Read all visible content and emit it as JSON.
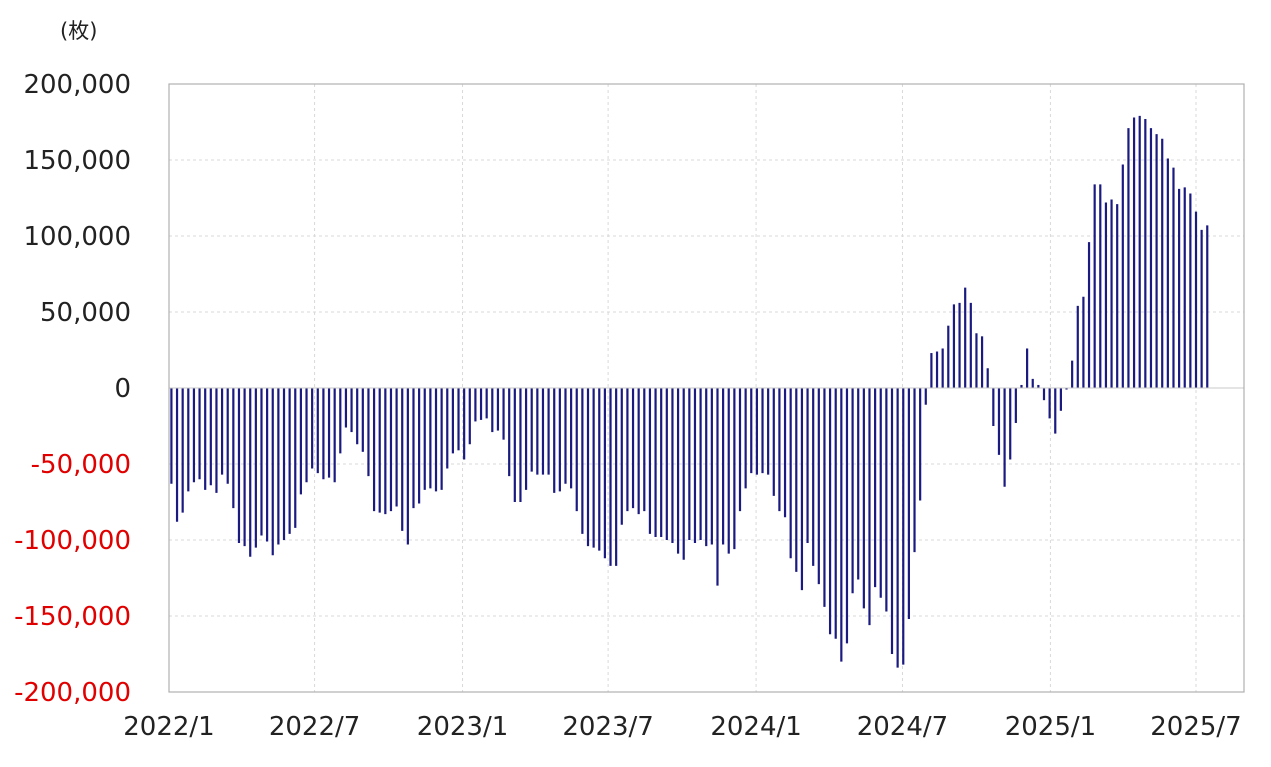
{
  "chart_data": {
    "type": "bar",
    "unit_label": "(枚)",
    "title": "",
    "xlabel": "",
    "ylabel": "",
    "ylim": [
      -200000,
      200000
    ],
    "y_ticks": [
      {
        "value": 200000,
        "label": "200,000"
      },
      {
        "value": 150000,
        "label": "150,000"
      },
      {
        "value": 100000,
        "label": "100,000"
      },
      {
        "value": 50000,
        "label": "50,000"
      },
      {
        "value": 0,
        "label": "0"
      },
      {
        "value": -50000,
        "label": "-50,000"
      },
      {
        "value": -100000,
        "label": "-100,000"
      },
      {
        "value": -150000,
        "label": "-150,000"
      },
      {
        "value": -200000,
        "label": "-200,000"
      }
    ],
    "x_ticks": [
      {
        "date": "2022-01-01",
        "label": "2022/1"
      },
      {
        "date": "2022-07-01",
        "label": "2022/7"
      },
      {
        "date": "2023-01-01",
        "label": "2023/1"
      },
      {
        "date": "2023-07-01",
        "label": "2023/7"
      },
      {
        "date": "2024-01-01",
        "label": "2024/1"
      },
      {
        "date": "2024-07-01",
        "label": "2024/7"
      },
      {
        "date": "2025-01-01",
        "label": "2025/1"
      },
      {
        "date": "2025-07-01",
        "label": "2025/7"
      }
    ],
    "x_range": [
      "2022-01-01",
      "2025-07-01"
    ],
    "grid": true,
    "legend": "none",
    "colors": {
      "bar": "#1a1a80",
      "positive_tick": "#222222",
      "negative_tick": "#e00000",
      "grid": "#d9d9d9",
      "axis": "#b0b0b0"
    },
    "series": [
      {
        "dates": [
          "2022-01-04",
          "2022-01-11",
          "2022-01-18",
          "2022-01-25",
          "2022-02-01",
          "2022-02-08",
          "2022-02-15",
          "2022-02-22",
          "2022-03-01",
          "2022-03-08",
          "2022-03-15",
          "2022-03-22",
          "2022-03-29",
          "2022-04-05",
          "2022-04-12",
          "2022-04-19",
          "2022-04-26",
          "2022-05-03",
          "2022-05-10",
          "2022-05-17",
          "2022-05-24",
          "2022-05-31",
          "2022-06-07",
          "2022-06-14",
          "2022-06-21",
          "2022-06-28",
          "2022-07-05",
          "2022-07-12",
          "2022-07-19",
          "2022-07-26",
          "2022-08-02",
          "2022-08-09",
          "2022-08-16",
          "2022-08-23",
          "2022-08-30",
          "2022-09-06",
          "2022-09-13",
          "2022-09-20",
          "2022-09-27",
          "2022-10-04",
          "2022-10-11",
          "2022-10-18",
          "2022-10-25",
          "2022-11-01",
          "2022-11-08",
          "2022-11-15",
          "2022-11-22",
          "2022-11-29",
          "2022-12-06",
          "2022-12-13",
          "2022-12-20",
          "2022-12-27",
          "2023-01-03",
          "2023-01-10",
          "2023-01-17",
          "2023-01-24",
          "2023-01-31",
          "2023-02-07",
          "2023-02-14",
          "2023-02-21",
          "2023-02-28",
          "2023-03-07",
          "2023-03-14",
          "2023-03-21",
          "2023-03-28",
          "2023-04-04",
          "2023-04-11",
          "2023-04-18",
          "2023-04-25",
          "2023-05-02",
          "2023-05-09",
          "2023-05-16",
          "2023-05-23",
          "2023-05-30",
          "2023-06-06",
          "2023-06-13",
          "2023-06-20",
          "2023-06-27",
          "2023-07-04",
          "2023-07-11",
          "2023-07-18",
          "2023-07-25",
          "2023-08-01",
          "2023-08-08",
          "2023-08-15",
          "2023-08-22",
          "2023-08-29",
          "2023-09-05",
          "2023-09-12",
          "2023-09-19",
          "2023-09-26",
          "2023-10-03",
          "2023-10-10",
          "2023-10-17",
          "2023-10-24",
          "2023-10-31",
          "2023-11-07",
          "2023-11-14",
          "2023-11-21",
          "2023-11-28",
          "2023-12-05",
          "2023-12-12",
          "2023-12-19",
          "2023-12-26",
          "2024-01-02",
          "2024-01-09",
          "2024-01-16",
          "2024-01-23",
          "2024-01-30",
          "2024-02-06",
          "2024-02-13",
          "2024-02-20",
          "2024-02-27",
          "2024-03-05",
          "2024-03-12",
          "2024-03-19",
          "2024-03-26",
          "2024-04-02",
          "2024-04-09",
          "2024-04-16",
          "2024-04-23",
          "2024-04-30",
          "2024-05-07",
          "2024-05-14",
          "2024-05-21",
          "2024-05-28",
          "2024-06-04",
          "2024-06-11",
          "2024-06-18",
          "2024-06-25",
          "2024-07-02",
          "2024-07-09",
          "2024-07-16",
          "2024-07-23",
          "2024-07-30",
          "2024-08-06",
          "2024-08-13",
          "2024-08-20",
          "2024-08-27",
          "2024-09-03",
          "2024-09-10",
          "2024-09-17",
          "2024-09-24",
          "2024-10-01",
          "2024-10-08",
          "2024-10-15",
          "2024-10-22",
          "2024-10-29",
          "2024-11-05",
          "2024-11-12",
          "2024-11-19",
          "2024-11-26",
          "2024-12-03",
          "2024-12-10",
          "2024-12-17",
          "2024-12-24",
          "2024-12-31",
          "2025-01-07",
          "2025-01-14",
          "2025-01-21",
          "2025-01-28",
          "2025-02-04",
          "2025-02-11",
          "2025-02-18",
          "2025-02-25",
          "2025-03-04",
          "2025-03-11",
          "2025-03-18",
          "2025-03-25",
          "2025-04-01",
          "2025-04-08",
          "2025-04-15",
          "2025-04-22",
          "2025-04-29",
          "2025-05-06",
          "2025-05-13",
          "2025-05-20",
          "2025-05-27",
          "2025-06-03",
          "2025-06-10",
          "2025-06-17",
          "2025-06-24",
          "2025-07-01",
          "2025-07-08",
          "2025-07-15"
        ],
        "values": [
          -63000,
          -88000,
          -82000,
          -68000,
          -62000,
          -60000,
          -67000,
          -64000,
          -69000,
          -57000,
          -63000,
          -79000,
          -102000,
          -104000,
          -111000,
          -105000,
          -97000,
          -101000,
          -110000,
          -103000,
          -100000,
          -96000,
          -92000,
          -70000,
          -62000,
          -53000,
          -56000,
          -60000,
          -59000,
          -62000,
          -43000,
          -26000,
          -29000,
          -37000,
          -42000,
          -58000,
          -81000,
          -82000,
          -83000,
          -81000,
          -78000,
          -94000,
          -103000,
          -79000,
          -76000,
          -67000,
          -66000,
          -68000,
          -67000,
          -53000,
          -43000,
          -41000,
          -47000,
          -37000,
          -22000,
          -21000,
          -20000,
          -29000,
          -28000,
          -34000,
          -58000,
          -75000,
          -75000,
          -67000,
          -55000,
          -57000,
          -57000,
          -57000,
          -69000,
          -68000,
          -63000,
          -66000,
          -81000,
          -96000,
          -104000,
          -105000,
          -107000,
          -112000,
          -117000,
          -117000,
          -90000,
          -81000,
          -79000,
          -83000,
          -81000,
          -96000,
          -98000,
          -98000,
          -100000,
          -102000,
          -109000,
          -113000,
          -100000,
          -102000,
          -100000,
          -104000,
          -103000,
          -130000,
          -103000,
          -109000,
          -106000,
          -81000,
          -66000,
          -56000,
          -57000,
          -56000,
          -57000,
          -71000,
          -81000,
          -85000,
          -112000,
          -121000,
          -133000,
          -102000,
          -117000,
          -129000,
          -144000,
          -162000,
          -165000,
          -180000,
          -168000,
          -135000,
          -126000,
          -145000,
          -156000,
          -131000,
          -138000,
          -147000,
          -175000,
          -184000,
          -182000,
          -152000,
          -108000,
          -74000,
          -11000,
          23000,
          24000,
          26000,
          41000,
          55000,
          56000,
          66000,
          56000,
          36000,
          34000,
          13000,
          -25000,
          -44000,
          -65000,
          -47000,
          -23000,
          2000,
          26000,
          6000,
          2000,
          -8000,
          -20000,
          -30000,
          -15000,
          -1000,
          18000,
          54000,
          60000,
          96000,
          134000,
          134000,
          122000,
          124000,
          121000,
          147000,
          171000,
          178000,
          179000,
          177000,
          171000,
          167000,
          164000,
          151000,
          145000,
          131000,
          132000,
          128000,
          116000,
          104000,
          107000
        ]
      }
    ]
  }
}
